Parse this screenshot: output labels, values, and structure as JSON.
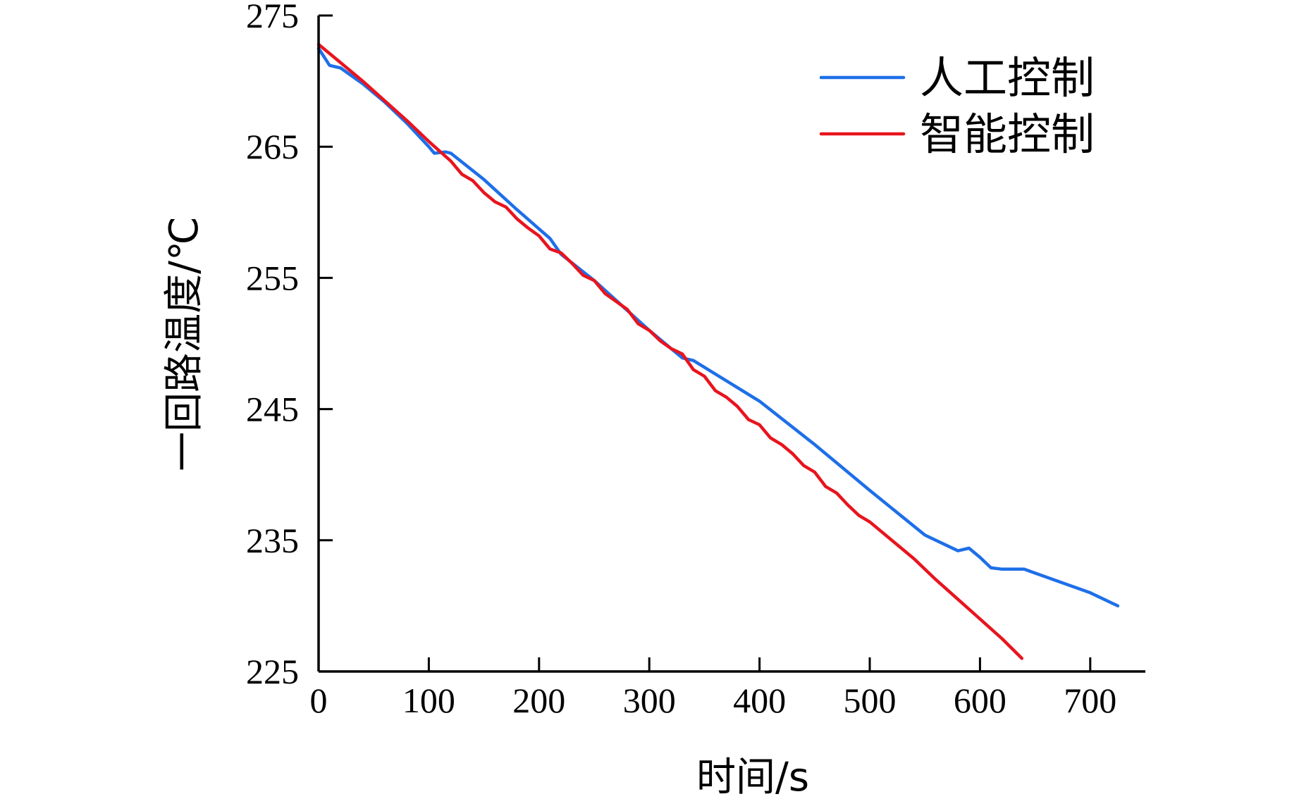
{
  "chart_data": {
    "type": "line",
    "xlabel": "时间/s",
    "ylabel": "一回路温度/℃",
    "xlim": [
      0,
      750
    ],
    "ylim": [
      225,
      275
    ],
    "xticks": [
      0,
      100,
      200,
      300,
      400,
      500,
      600,
      700
    ],
    "yticks": [
      225,
      235,
      245,
      255,
      265,
      275
    ],
    "grid": false,
    "legend_position": "top-right",
    "series": [
      {
        "name": "人工控制",
        "color": "#1e6fe8",
        "x": [
          0,
          10,
          20,
          40,
          60,
          80,
          100,
          105,
          115,
          120,
          150,
          180,
          210,
          220,
          250,
          300,
          330,
          340,
          400,
          450,
          500,
          550,
          580,
          590,
          600,
          610,
          620,
          640,
          650,
          700,
          725
        ],
        "y": [
          272.5,
          271.2,
          271.0,
          269.8,
          268.4,
          266.8,
          265.0,
          264.5,
          264.6,
          264.5,
          262.5,
          260.2,
          258.0,
          256.8,
          254.8,
          251.0,
          248.9,
          248.7,
          245.6,
          242.3,
          238.8,
          235.4,
          234.2,
          234.4,
          233.7,
          232.9,
          232.8,
          232.8,
          232.5,
          231.0,
          230.0
        ]
      },
      {
        "name": "智能控制",
        "color": "#e8141e",
        "x": [
          0,
          20,
          40,
          60,
          80,
          100,
          120,
          130,
          140,
          150,
          160,
          170,
          180,
          190,
          200,
          210,
          220,
          230,
          240,
          250,
          260,
          270,
          280,
          290,
          300,
          310,
          320,
          330,
          340,
          350,
          360,
          370,
          380,
          390,
          400,
          410,
          420,
          430,
          440,
          450,
          460,
          470,
          480,
          490,
          500,
          520,
          540,
          560,
          580,
          600,
          620,
          638
        ],
        "y": [
          272.8,
          271.4,
          270.0,
          268.5,
          267.0,
          265.4,
          263.9,
          262.9,
          262.4,
          261.5,
          260.8,
          260.4,
          259.5,
          258.8,
          258.2,
          257.2,
          256.9,
          256.1,
          255.2,
          254.8,
          253.8,
          253.2,
          252.6,
          251.5,
          251.0,
          250.2,
          249.6,
          249.2,
          248.0,
          247.5,
          246.4,
          245.9,
          245.2,
          244.2,
          243.8,
          242.8,
          242.3,
          241.6,
          240.7,
          240.2,
          239.1,
          238.6,
          237.7,
          236.9,
          236.4,
          235.0,
          233.6,
          232.0,
          230.5,
          229.0,
          227.5,
          226.0
        ]
      }
    ]
  }
}
